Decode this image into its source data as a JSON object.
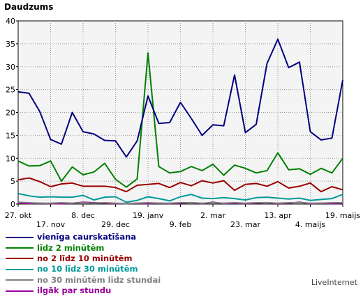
{
  "chart_data": {
    "type": "line",
    "title": "Daudzums",
    "ylim": [
      0,
      40
    ],
    "yticks": [
      "0",
      "5",
      "10",
      "15",
      "20",
      "25",
      "30",
      "35",
      "40"
    ],
    "grid": true,
    "x_ticks": [
      {
        "label": "27. okt",
        "index": 0,
        "row": 1
      },
      {
        "label": "17. nov",
        "index": 3,
        "row": 2
      },
      {
        "label": "8. dec",
        "index": 6,
        "row": 1
      },
      {
        "label": "29. dec",
        "index": 9,
        "row": 2
      },
      {
        "label": "19. janv",
        "index": 12,
        "row": 1
      },
      {
        "label": "9. feb",
        "index": 15,
        "row": 2
      },
      {
        "label": "2. mar",
        "index": 18,
        "row": 1
      },
      {
        "label": "23. mar",
        "index": 21,
        "row": 2
      },
      {
        "label": "13. apr",
        "index": 24,
        "row": 1
      },
      {
        "label": "4. maijs",
        "index": 27,
        "row": 2
      },
      {
        "label": "19. maijs",
        "index": 30,
        "row": 1
      }
    ],
    "series": [
      {
        "name": "vienīga caurskatīšana",
        "color": "#000080",
        "values": [
          24.5,
          24.2,
          20.2,
          14.1,
          13.1,
          20.0,
          15.8,
          15.3,
          13.9,
          13.8,
          10.3,
          13.8,
          23.6,
          17.6,
          17.8,
          22.2,
          18.7,
          15.0,
          17.3,
          17.1,
          28.2,
          15.6,
          17.4,
          30.7,
          36.0,
          29.8,
          31.0,
          15.8,
          14.0,
          14.4,
          27.1
        ]
      },
      {
        "name": "līdz 2 minūtēm",
        "color": "#008000",
        "values": [
          9.4,
          8.3,
          8.4,
          9.4,
          5.0,
          8.1,
          6.4,
          7.0,
          8.9,
          5.4,
          3.7,
          5.5,
          33.0,
          8.2,
          6.8,
          7.1,
          8.2,
          7.3,
          8.7,
          6.3,
          8.5,
          7.8,
          6.8,
          7.3,
          11.2,
          7.5,
          7.7,
          6.5,
          7.8,
          6.8,
          10.0
        ]
      },
      {
        "name": "no 2 līdz 10 minūtēm",
        "color": "#990000",
        "values": [
          5.3,
          5.7,
          4.9,
          3.8,
          4.4,
          4.6,
          3.9,
          3.9,
          3.9,
          3.6,
          2.7,
          4.1,
          4.3,
          4.5,
          3.6,
          4.7,
          4.0,
          5.1,
          4.6,
          5.1,
          3.0,
          4.3,
          4.5,
          3.9,
          4.9,
          3.5,
          3.9,
          4.6,
          2.7,
          3.8,
          3.1
        ]
      },
      {
        "name": "no 10 līdz 30 minūtēm",
        "color": "#009999",
        "values": [
          2.3,
          1.8,
          1.5,
          1.6,
          1.5,
          1.5,
          1.9,
          0.9,
          1.5,
          1.6,
          0.4,
          0.8,
          1.6,
          1.2,
          0.7,
          1.6,
          2.1,
          1.3,
          1.2,
          1.4,
          1.2,
          0.9,
          1.4,
          1.5,
          1.3,
          1.1,
          1.3,
          0.8,
          1.0,
          1.2,
          2.1
        ]
      },
      {
        "name": "no 30 minūtēm līdz stundai",
        "color": "#808080",
        "values": [
          0.4,
          0.3,
          0.2,
          0.2,
          0.3,
          0.2,
          0.3,
          0.2,
          0.3,
          0.2,
          0.1,
          0.2,
          0.3,
          0.2,
          0.2,
          0.3,
          0.3,
          0.2,
          0.3,
          0.2,
          0.3,
          0.2,
          0.3,
          0.3,
          0.2,
          0.3,
          0.3,
          0.2,
          0.2,
          0.3,
          0.3
        ]
      },
      {
        "name": "ilgāk par stundu",
        "color": "#990099",
        "values": [
          0.2,
          0.1,
          0.2,
          0.1,
          0.1,
          0.2,
          0.4,
          0.3,
          0.2,
          0.1,
          0.1,
          0.2,
          0.1,
          0.2,
          0.1,
          0.2,
          0.3,
          0.1,
          0.4,
          0.1,
          0.2,
          0.1,
          0.2,
          0.3,
          0.1,
          0.2,
          0.4,
          0.1,
          0.2,
          0.1,
          0.2
        ]
      }
    ]
  },
  "brand": "LiveInternet"
}
